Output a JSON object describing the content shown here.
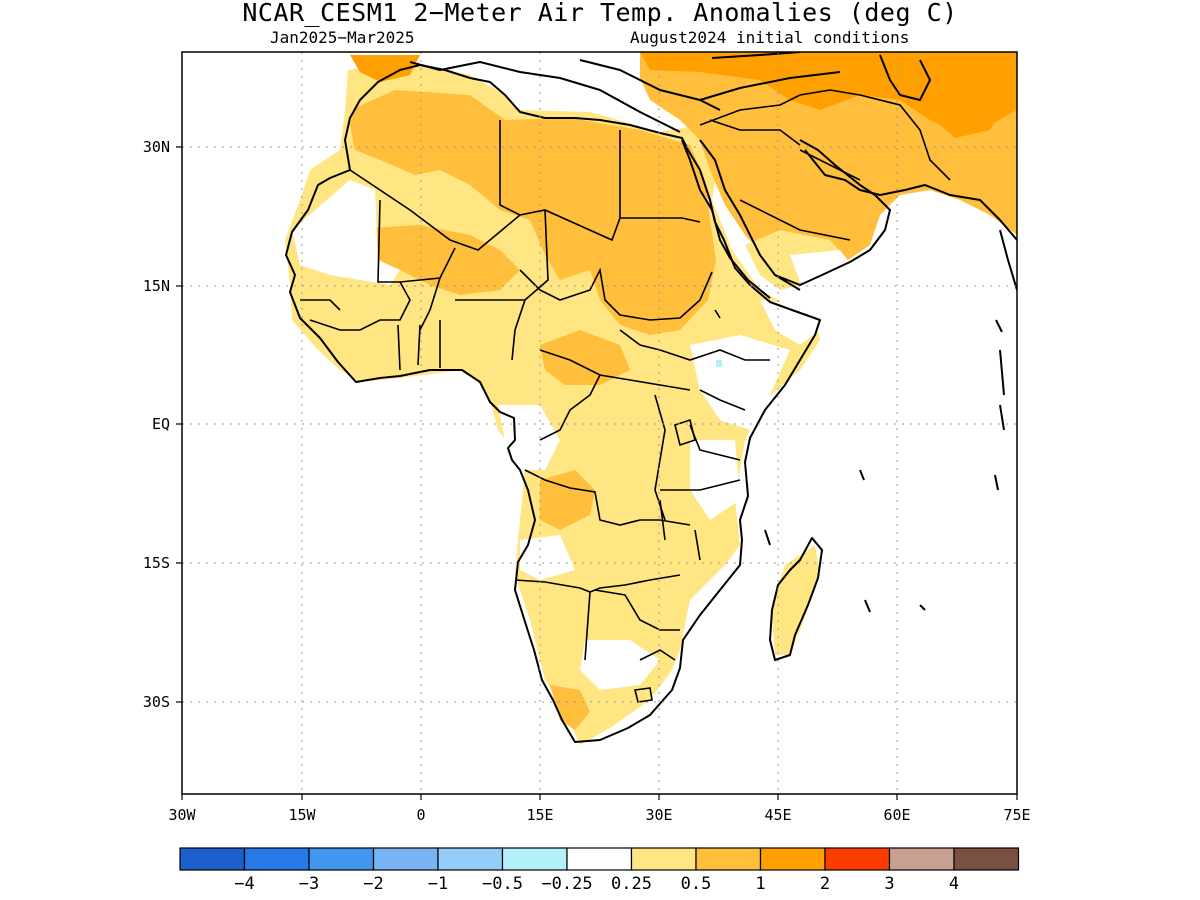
{
  "title": "NCAR_CESM1 2−Meter Air Temp. Anomalies (deg C)",
  "subtitle_left": "Jan2025−Mar2025",
  "subtitle_right": "August2024 initial conditions",
  "map": {
    "lon_range": [
      -30,
      75
    ],
    "lat_range": [
      -40,
      40
    ],
    "x_ticks": [
      {
        "value": -30,
        "label": "30W"
      },
      {
        "value": -15,
        "label": "15W"
      },
      {
        "value": 0,
        "label": "0"
      },
      {
        "value": 15,
        "label": "15E"
      },
      {
        "value": 30,
        "label": "30E"
      },
      {
        "value": 45,
        "label": "45E"
      },
      {
        "value": 60,
        "label": "60E"
      },
      {
        "value": 75,
        "label": "75E"
      }
    ],
    "y_ticks": [
      {
        "value": 30,
        "label": "30N"
      },
      {
        "value": 15,
        "label": "15N"
      },
      {
        "value": 0,
        "label": "EQ"
      },
      {
        "value": -15,
        "label": "15S"
      },
      {
        "value": -30,
        "label": "30S"
      }
    ],
    "grid": "dotted"
  },
  "colorbar": {
    "colors": [
      "#1a5fcc",
      "#2878e8",
      "#4196f0",
      "#78b4f5",
      "#96cdf8",
      "#b4f0fa",
      "#ffffff",
      "#ffe682",
      "#ffbe3c",
      "#ffa000",
      "#ff3c00",
      "#c8a092",
      "#7a5040"
    ],
    "labels": [
      "−4",
      "−3",
      "−2",
      "−1",
      "−0.5",
      "−0.25",
      "0.25",
      "0.5",
      "1",
      "2",
      "3",
      "4"
    ]
  }
}
